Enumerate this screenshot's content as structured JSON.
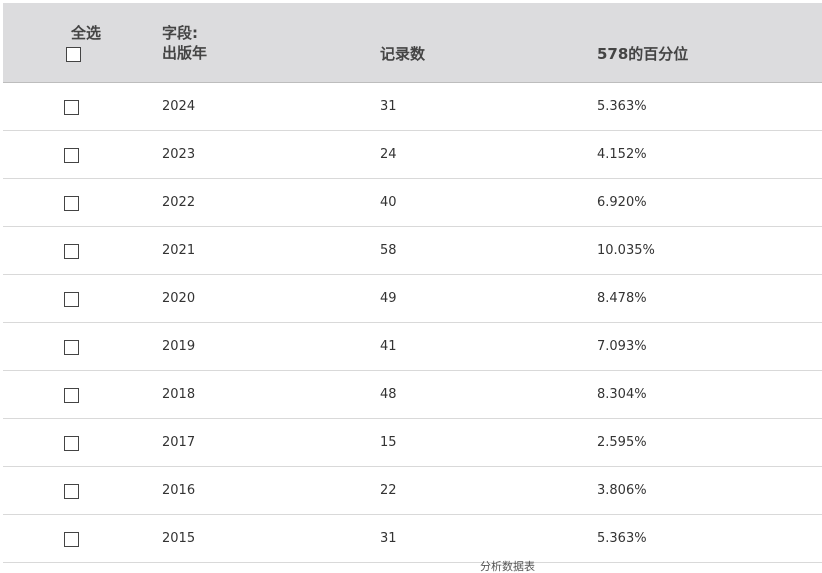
{
  "header": {
    "select_all_label": "全选",
    "field_label_line1": "字段:",
    "field_label_line2": "出版年",
    "count_label": "记录数",
    "percent_label": "578的百分位"
  },
  "rows": [
    {
      "year": "2024",
      "count": "31",
      "percent": "5.363%",
      "checked": false
    },
    {
      "year": "2023",
      "count": "24",
      "percent": "4.152%",
      "checked": false
    },
    {
      "year": "2022",
      "count": "40",
      "percent": "6.920%",
      "checked": false
    },
    {
      "year": "2021",
      "count": "58",
      "percent": "10.035%",
      "checked": false
    },
    {
      "year": "2020",
      "count": "49",
      "percent": "8.478%",
      "checked": false
    },
    {
      "year": "2019",
      "count": "41",
      "percent": "7.093%",
      "checked": false
    },
    {
      "year": "2018",
      "count": "48",
      "percent": "8.304%",
      "checked": false
    },
    {
      "year": "2017",
      "count": "15",
      "percent": "2.595%",
      "checked": false
    },
    {
      "year": "2016",
      "count": "22",
      "percent": "3.806%",
      "checked": false
    },
    {
      "year": "2015",
      "count": "31",
      "percent": "5.363%",
      "checked": false
    }
  ],
  "footer_peek_text": "分析数据表"
}
